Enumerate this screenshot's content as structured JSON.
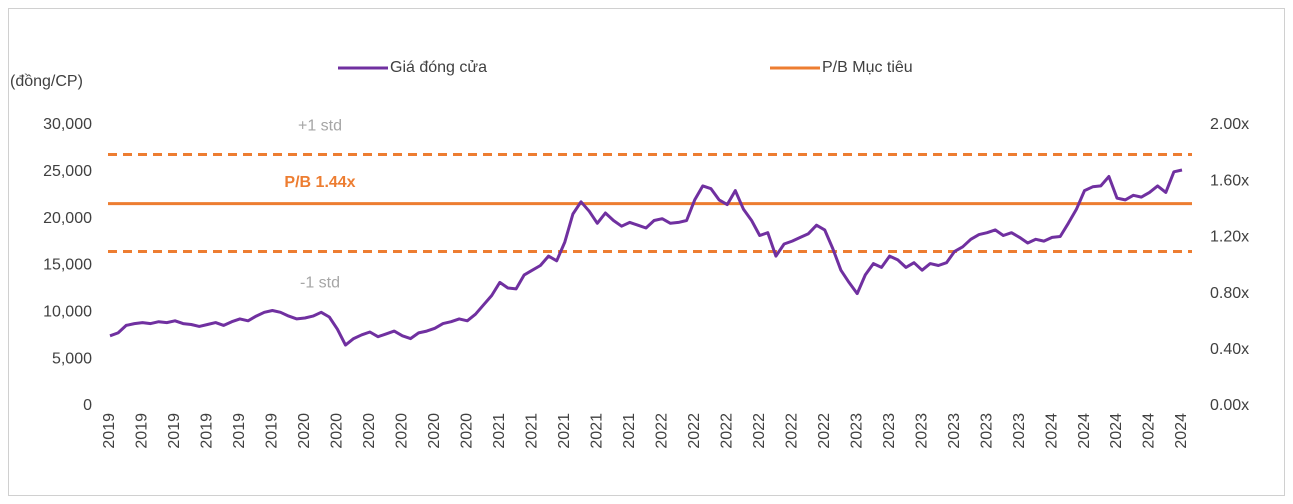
{
  "chart_data": {
    "type": "line",
    "y_label": "(đồng/CP)",
    "categories": [
      "2019",
      null,
      null,
      null,
      "2019",
      null,
      null,
      null,
      "2019",
      null,
      null,
      null,
      "2019",
      null,
      null,
      null,
      "2019",
      null,
      null,
      null,
      "2019",
      null,
      null,
      null,
      "2020",
      null,
      null,
      null,
      "2020",
      null,
      null,
      null,
      "2020",
      null,
      null,
      null,
      "2020",
      null,
      null,
      null,
      "2020",
      null,
      null,
      null,
      "2020",
      null,
      null,
      null,
      "2021",
      null,
      null,
      null,
      "2021",
      null,
      null,
      null,
      "2021",
      null,
      null,
      null,
      "2021",
      null,
      null,
      null,
      "2021",
      null,
      null,
      null,
      "2022",
      null,
      null,
      null,
      "2022",
      null,
      null,
      null,
      "2022",
      null,
      null,
      null,
      "2022",
      null,
      null,
      null,
      "2022",
      null,
      null,
      null,
      "2022",
      null,
      null,
      null,
      "2023",
      null,
      null,
      null,
      "2023",
      null,
      null,
      null,
      "2023",
      null,
      null,
      null,
      "2023",
      null,
      null,
      null,
      "2023",
      null,
      null,
      null,
      "2023",
      null,
      null,
      null,
      "2024",
      null,
      null,
      null,
      "2024",
      null,
      null,
      null,
      "2024",
      null,
      null,
      null,
      "2024",
      null,
      null,
      null,
      "2024"
    ],
    "series": [
      {
        "name": "Giá đóng cửa",
        "color": "#7030a0",
        "values": [
          7500,
          7800,
          8600,
          8800,
          8900,
          8800,
          9000,
          8900,
          9100,
          8800,
          8700,
          8500,
          8700,
          8900,
          8600,
          9000,
          9300,
          9100,
          9600,
          10000,
          10200,
          10000,
          9600,
          9300,
          9400,
          9600,
          10000,
          9500,
          8200,
          6500,
          7200,
          7600,
          7900,
          7400,
          7700,
          8000,
          7500,
          7200,
          7800,
          8000,
          8300,
          8800,
          9000,
          9300,
          9100,
          9800,
          10800,
          11800,
          13200,
          12600,
          12500,
          14000,
          14500,
          15000,
          16000,
          15500,
          17500,
          20500,
          21800,
          20800,
          19500,
          20600,
          19800,
          19200,
          19600,
          19300,
          19000,
          19800,
          20000,
          19500,
          19600,
          19800,
          22000,
          23500,
          23200,
          22000,
          21500,
          23000,
          21000,
          19800,
          18200,
          18500,
          16000,
          17300,
          17600,
          18000,
          18400,
          19300,
          18800,
          16800,
          14500,
          13200,
          12000,
          14000,
          15200,
          14800,
          16000,
          15600,
          14800,
          15300,
          14500,
          15200,
          15000,
          15300,
          16500,
          17000,
          17800,
          18300,
          18500,
          18800,
          18200,
          18500,
          18000,
          17400,
          17800,
          17600,
          18000,
          18100,
          19500,
          21000,
          23000,
          23400,
          23500,
          24500,
          22200,
          22000,
          22500,
          22300,
          22800,
          23500,
          22800,
          25000,
          25200
        ]
      }
    ],
    "reference_lines": [
      {
        "name": "P/B Mục tiêu",
        "label": "P/B 1.44x",
        "value": 1.44,
        "axis": "y2",
        "color": "#ed7d31",
        "dashed": false
      },
      {
        "label": "+1 std",
        "value": 1.79,
        "axis": "y2",
        "color": "#ed7d31",
        "dashed": true
      },
      {
        "label": "-1 std",
        "value": 1.1,
        "axis": "y2",
        "color": "#ed7d31",
        "dashed": true
      }
    ],
    "ylim": [
      0,
      30000
    ],
    "yticks": [
      0,
      {
        "value": 5000,
        "label": "5,000"
      },
      {
        "value": 10000,
        "label": "10,000"
      },
      {
        "value": 15000,
        "label": "15,000"
      },
      {
        "value": 20000,
        "label": "20,000"
      },
      {
        "value": 25000,
        "label": "25,000"
      },
      {
        "value": 30000,
        "label": "30,000"
      }
    ],
    "y2lim": [
      0,
      2
    ],
    "y2ticks": [
      {
        "value": 0,
        "label": "0.00x"
      },
      {
        "value": 0.4,
        "label": "0.40x"
      },
      {
        "value": 0.8,
        "label": "0.80x"
      },
      {
        "value": 1.2,
        "label": "1.20x"
      },
      {
        "value": 1.6,
        "label": "1.60x"
      },
      {
        "value": 2,
        "label": "2.00x"
      }
    ],
    "grid": false
  }
}
